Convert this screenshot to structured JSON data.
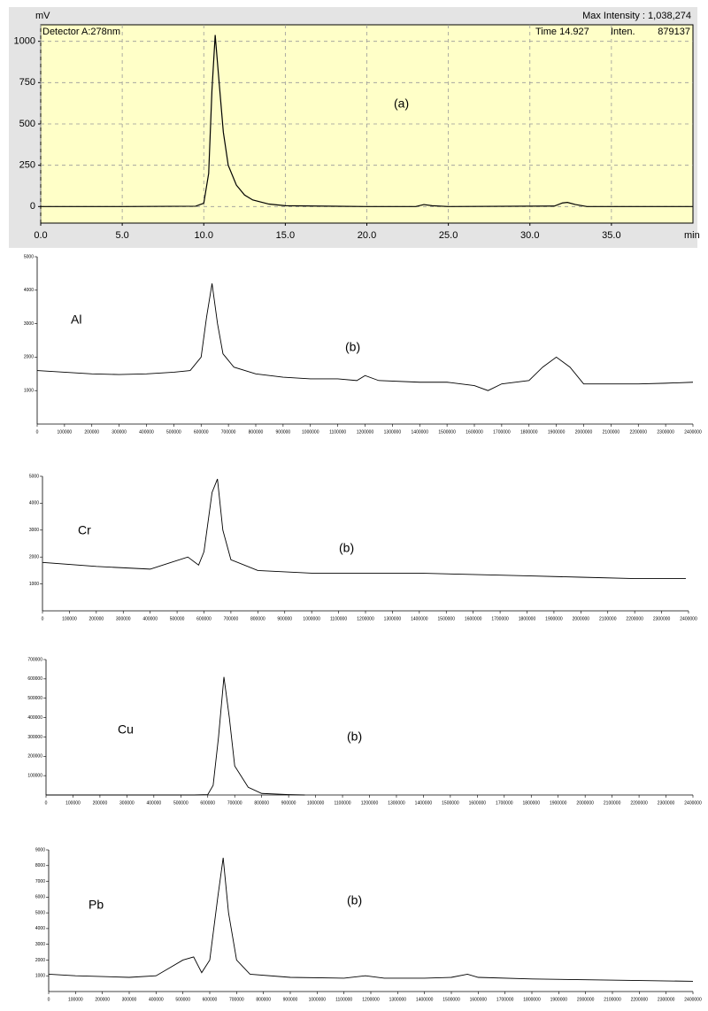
{
  "chart_data": [
    {
      "type": "line",
      "ylabel": "mV",
      "xlabel": "min",
      "max_intensity": "Max Intensity : 1,038,274",
      "detector": "Detector A:278nm",
      "info": [
        "Time  14.927",
        "Inten.",
        "879137"
      ],
      "annotation": "(a)",
      "grid": true,
      "background": "#ffffc8",
      "xlim": [
        0,
        40
      ],
      "ylim": [
        -100,
        1100
      ],
      "xticks": [
        {
          "value": 0,
          "label": "0.0"
        },
        {
          "value": 5,
          "label": "5.0"
        },
        {
          "value": 10,
          "label": "10.0"
        },
        {
          "value": 15,
          "label": "15.0"
        },
        {
          "value": 20,
          "label": "20.0"
        },
        {
          "value": 25,
          "label": "25.0"
        },
        {
          "value": 30,
          "label": "30.0"
        },
        {
          "value": 35,
          "label": "35.0"
        }
      ],
      "yticks": [
        0,
        250,
        500,
        750,
        1000
      ],
      "x": [
        0,
        5,
        9.5,
        10,
        10.3,
        10.5,
        10.7,
        10.9,
        11.2,
        11.5,
        12,
        12.5,
        13,
        14,
        15,
        20,
        23,
        23.5,
        24,
        25,
        31.5,
        32,
        32.3,
        32.8,
        33.5,
        40
      ],
      "series": [
        {
          "color": "#000000",
          "values": [
            0,
            0,
            2,
            20,
            200,
            700,
            1038,
            800,
            450,
            250,
            130,
            70,
            40,
            15,
            5,
            0,
            0,
            12,
            5,
            0,
            3,
            22,
            25,
            12,
            0,
            0
          ]
        }
      ]
    },
    {
      "type": "line",
      "label": "Al",
      "annotation": "(b)",
      "grid": false,
      "xlim": [
        0,
        2400000
      ],
      "ylim": [
        0,
        5000
      ],
      "xticks": [
        0,
        100000,
        200000,
        300000,
        400000,
        500000,
        600000,
        700000,
        800000,
        900000,
        1000000,
        1100000,
        1200000,
        1300000,
        1400000,
        1500000,
        1600000,
        1700000,
        1800000,
        1900000,
        2000000,
        2100000,
        2200000,
        2300000,
        2400000
      ],
      "yticks": [
        1000,
        2000,
        3000,
        4000,
        5000
      ],
      "x": [
        0,
        100000,
        200000,
        300000,
        400000,
        500000,
        560000,
        600000,
        620000,
        640000,
        660000,
        680000,
        720000,
        800000,
        900000,
        1000000,
        1100000,
        1170000,
        1200000,
        1250000,
        1400000,
        1500000,
        1600000,
        1650000,
        1700000,
        1800000,
        1850000,
        1900000,
        1950000,
        2000000,
        2100000,
        2200000,
        2300000,
        2400000
      ],
      "series": [
        {
          "color": "#000000",
          "values": [
            1600,
            1550,
            1500,
            1480,
            1500,
            1550,
            1600,
            2000,
            3200,
            4200,
            3000,
            2100,
            1700,
            1500,
            1400,
            1350,
            1350,
            1300,
            1450,
            1300,
            1250,
            1250,
            1150,
            1000,
            1200,
            1300,
            1700,
            2000,
            1700,
            1200,
            1200,
            1200,
            1220,
            1250
          ]
        }
      ]
    },
    {
      "type": "line",
      "label": "Cr",
      "annotation": "(b)",
      "grid": false,
      "xlim": [
        0,
        2400000
      ],
      "ylim": [
        0,
        5000
      ],
      "xticks": [
        0,
        100000,
        200000,
        300000,
        400000,
        500000,
        600000,
        700000,
        800000,
        900000,
        1000000,
        1100000,
        1200000,
        1300000,
        1400000,
        1500000,
        1600000,
        1700000,
        1800000,
        1900000,
        2000000,
        2100000,
        2200000,
        2300000,
        2400000
      ],
      "yticks": [
        1000,
        2000,
        3000,
        4000,
        5000
      ],
      "x": [
        0,
        200000,
        400000,
        540000,
        580000,
        600000,
        630000,
        650000,
        670000,
        700000,
        800000,
        1000000,
        1200000,
        1400000,
        1600000,
        1800000,
        2000000,
        2200000,
        2390000
      ],
      "series": [
        {
          "color": "#000000",
          "values": [
            1800,
            1650,
            1550,
            2000,
            1700,
            2200,
            4400,
            4900,
            3000,
            1900,
            1500,
            1400,
            1400,
            1400,
            1350,
            1300,
            1250,
            1200,
            1200
          ]
        }
      ]
    },
    {
      "type": "line",
      "label": "Cu",
      "annotation": "(b)",
      "grid": false,
      "xlim": [
        0,
        2400000
      ],
      "ylim": [
        0,
        700000
      ],
      "xticks": [
        0,
        100000,
        200000,
        300000,
        400000,
        500000,
        600000,
        700000,
        800000,
        900000,
        1000000,
        1100000,
        1200000,
        1300000,
        1400000,
        1500000,
        1600000,
        1700000,
        1800000,
        1900000,
        2000000,
        2100000,
        2200000,
        2300000,
        2400000
      ],
      "yticks": [
        100000,
        200000,
        300000,
        400000,
        500000,
        600000,
        700000
      ],
      "x": [
        0,
        550000,
        600000,
        620000,
        640000,
        660000,
        680000,
        700000,
        750000,
        800000,
        900000,
        960000
      ],
      "series": [
        {
          "color": "#000000",
          "values": [
            0,
            0,
            2000,
            50000,
            300000,
            610000,
            400000,
            150000,
            40000,
            8000,
            2000,
            0
          ]
        }
      ]
    },
    {
      "type": "line",
      "label": "Pb",
      "annotation": "(b)",
      "grid": false,
      "xlim": [
        0,
        2400000
      ],
      "ylim": [
        0,
        9000
      ],
      "xticks": [
        0,
        100000,
        200000,
        300000,
        400000,
        500000,
        600000,
        700000,
        800000,
        900000,
        1000000,
        1100000,
        1200000,
        1300000,
        1400000,
        1500000,
        1600000,
        1700000,
        1800000,
        1900000,
        2000000,
        2100000,
        2200000,
        2300000,
        2400000
      ],
      "yticks": [
        1000,
        2000,
        3000,
        4000,
        5000,
        6000,
        7000,
        8000,
        9000
      ],
      "x": [
        0,
        100000,
        200000,
        300000,
        400000,
        450000,
        500000,
        540000,
        570000,
        600000,
        630000,
        650000,
        670000,
        700000,
        750000,
        900000,
        1100000,
        1180000,
        1250000,
        1400000,
        1500000,
        1560000,
        1600000,
        1800000,
        2000000,
        2200000,
        2400000
      ],
      "series": [
        {
          "color": "#000000",
          "values": [
            1100,
            1000,
            950,
            900,
            1000,
            1500,
            2000,
            2200,
            1200,
            2000,
            6000,
            8500,
            5000,
            2000,
            1100,
            900,
            850,
            1000,
            850,
            850,
            900,
            1100,
            900,
            800,
            750,
            700,
            650
          ]
        }
      ]
    }
  ]
}
